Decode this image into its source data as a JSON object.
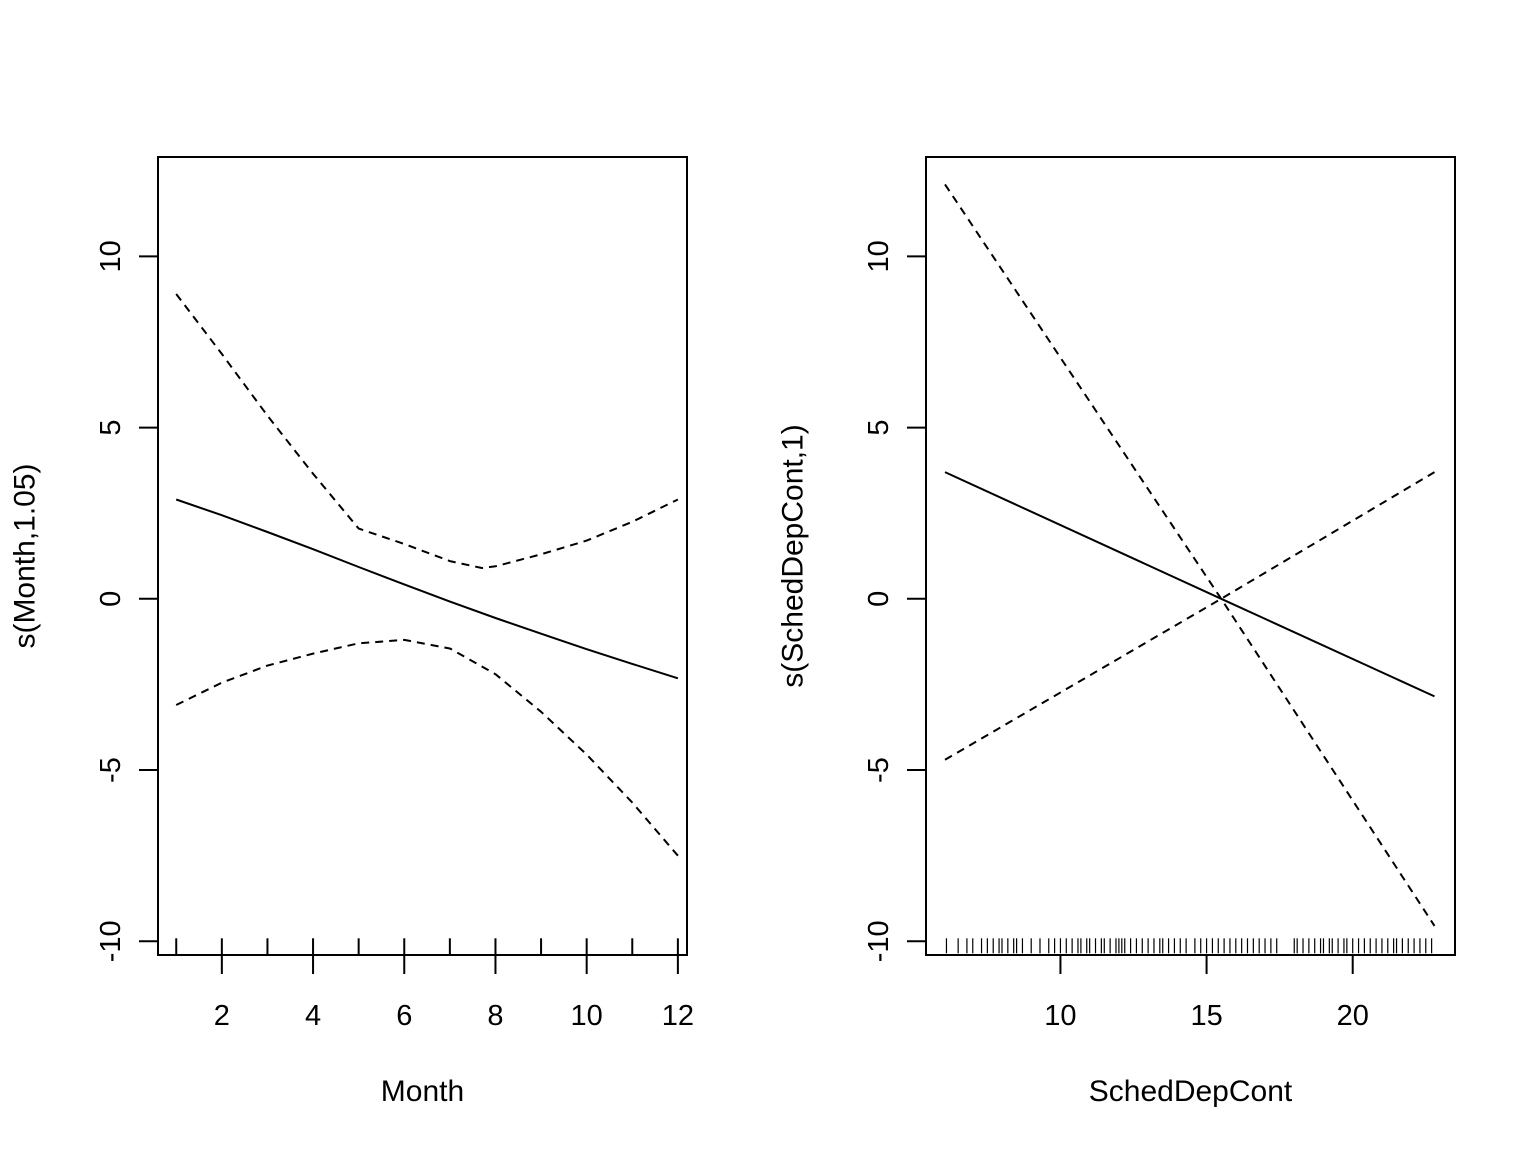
{
  "chart_data": [
    {
      "type": "line",
      "xlabel": "Month",
      "ylabel": "s(Month,1.05)",
      "xlim": [
        0.6,
        12.2
      ],
      "ylim": [
        -10.4,
        12.9
      ],
      "x_ticks": [
        2,
        4,
        6,
        8,
        10,
        12
      ],
      "y_ticks": [
        -10,
        -5,
        0,
        5,
        10
      ],
      "grid": false,
      "series": [
        {
          "role": "fit",
          "style": "solid",
          "x": [
            1,
            2,
            3,
            4,
            5,
            6,
            7,
            8,
            9,
            10,
            11,
            12
          ],
          "values": [
            2.9,
            2.44,
            1.95,
            1.45,
            0.93,
            0.42,
            -0.08,
            -0.56,
            -1.02,
            -1.47,
            -1.9,
            -2.32
          ]
        },
        {
          "role": "upper",
          "style": "dashed",
          "x": [
            1,
            2,
            3,
            4,
            5,
            6,
            7,
            7.7,
            8,
            9,
            10,
            11,
            12
          ],
          "values": [
            8.9,
            7.15,
            5.35,
            3.65,
            2.05,
            1.6,
            1.1,
            0.9,
            0.95,
            1.3,
            1.7,
            2.25,
            2.9
          ]
        },
        {
          "role": "lower",
          "style": "dashed",
          "x": [
            1,
            2,
            3,
            4,
            5,
            6,
            7,
            8,
            9,
            10,
            11,
            12
          ],
          "values": [
            -3.1,
            -2.45,
            -1.95,
            -1.6,
            -1.3,
            -1.2,
            -1.45,
            -2.2,
            -3.3,
            -4.55,
            -5.95,
            -7.5
          ]
        }
      ],
      "rug": [
        1,
        2,
        3,
        4,
        5,
        6,
        7,
        8,
        9,
        10,
        11,
        12
      ]
    },
    {
      "type": "line",
      "xlabel": "SchedDepCont",
      "ylabel": "s(SchedDepCont,1)",
      "xlim": [
        5.4,
        23.5
      ],
      "ylim": [
        -10.4,
        12.9
      ],
      "x_ticks": [
        10,
        15,
        20
      ],
      "y_ticks": [
        -10,
        -5,
        0,
        5,
        10
      ],
      "grid": false,
      "series": [
        {
          "role": "fit",
          "style": "solid",
          "x": [
            6.05,
            15.5,
            22.8
          ],
          "values": [
            3.7,
            0,
            -2.85
          ]
        },
        {
          "role": "upper",
          "style": "dashed",
          "x": [
            6.05,
            15.5,
            22.8
          ],
          "values": [
            12.1,
            0,
            -9.55
          ]
        },
        {
          "role": "lower",
          "style": "dashed",
          "x": [
            6.05,
            15.5,
            22.8
          ],
          "values": [
            -4.7,
            0,
            3.7
          ]
        }
      ],
      "rug": [
        6.1,
        6.5,
        6.8,
        7.0,
        7.3,
        7.5,
        7.7,
        7.9,
        8.0,
        8.2,
        8.4,
        8.5,
        8.7,
        9.0,
        9.3,
        9.6,
        9.8,
        10.0,
        10.2,
        10.4,
        10.6,
        10.7,
        10.9,
        11.0,
        11.2,
        11.4,
        11.5,
        11.7,
        11.9,
        12.0,
        12.1,
        12.2,
        12.4,
        12.6,
        12.8,
        13.0,
        13.2,
        13.4,
        13.5,
        13.7,
        13.9,
        14.1,
        14.3,
        14.6,
        14.8,
        15.0,
        15.2,
        15.4,
        15.6,
        15.8,
        16.0,
        16.2,
        16.4,
        16.6,
        16.8,
        17.0,
        17.2,
        17.4,
        18.0,
        18.1,
        18.3,
        18.5,
        18.7,
        18.9,
        19.0,
        19.2,
        19.3,
        19.5,
        19.7,
        19.8,
        20.0,
        20.2,
        20.4,
        20.6,
        20.8,
        21.0,
        21.2,
        21.4,
        21.5,
        21.7,
        21.9,
        22.1,
        22.3,
        22.5,
        22.7
      ]
    }
  ]
}
